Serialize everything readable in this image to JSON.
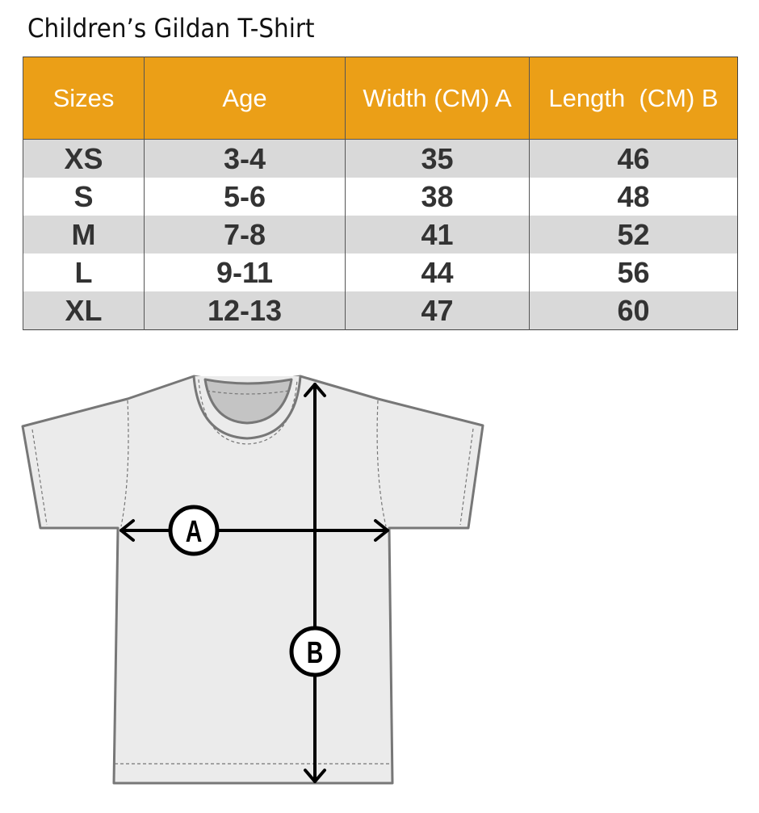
{
  "title": "Children’s Gildan T-Shirt",
  "table": {
    "headers": [
      "Sizes",
      "Age",
      "Width (CM) A",
      "Length  (CM) B"
    ],
    "rows": [
      [
        "XS",
        "3-4",
        "35",
        "46"
      ],
      [
        "S",
        "5-6",
        "38",
        "48"
      ],
      [
        "M",
        "7-8",
        "41",
        "52"
      ],
      [
        "L",
        "9-11",
        "44",
        "56"
      ],
      [
        "XL",
        "12-13",
        "47",
        "60"
      ]
    ]
  },
  "diagram": {
    "label_a": "A",
    "label_b": "B"
  },
  "colors": {
    "header": "#eb9f17",
    "stripe": "#d9d9d9"
  }
}
